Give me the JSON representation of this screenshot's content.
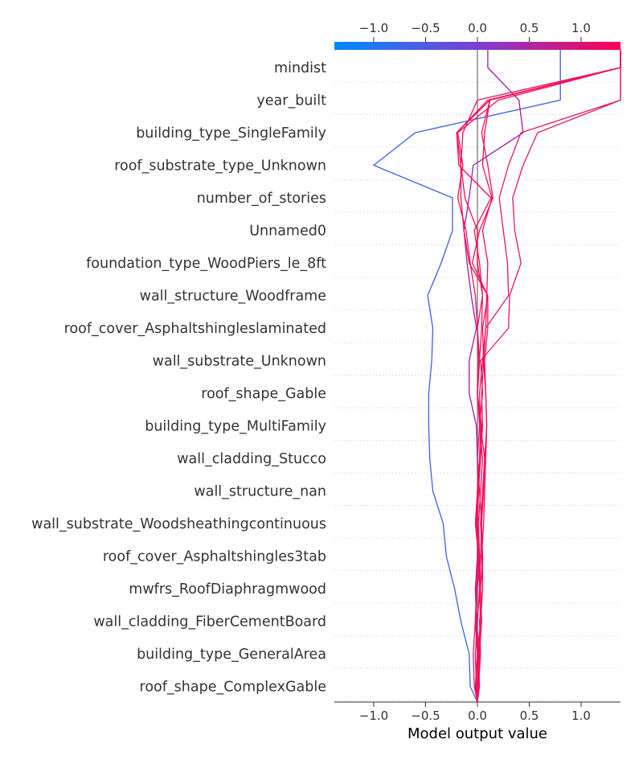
{
  "chart_data": {
    "type": "line",
    "title": "",
    "xlabel": "Model output value",
    "xlim": [
      -1.38,
      1.38
    ],
    "xticks": [
      -1.0,
      -0.5,
      0.0,
      0.5,
      1.0
    ],
    "xtick_labels": [
      "−1.0",
      "−0.5",
      "0.0",
      "0.5",
      "1.0"
    ],
    "base_value": 0.0,
    "colorbar": {
      "from": "#008bfb",
      "mid": "#7d3fd3",
      "to": "#ff0052"
    },
    "features": [
      "mindist",
      "year_built",
      "building_type_SingleFamily",
      "roof_substrate_type_Unknown",
      "number_of_stories",
      "Unnamed0",
      "foundation_type_WoodPiers_le_8ft",
      "wall_structure_Woodframe",
      "roof_cover_Asphaltshingleslaminated",
      "wall_substrate_Unknown",
      "roof_shape_Gable",
      "building_type_MultiFamily",
      "wall_cladding_Stucco",
      "wall_structure_nan",
      "wall_substrate_Woodsheathingcontinuous",
      "roof_cover_Asphaltshingles3tab",
      "mwfrs_RoofDiaphragmwood",
      "wall_cladding_FiberCementBoard",
      "building_type_GeneralArea",
      "roof_shape_ComplexGable"
    ],
    "series": [
      {
        "color": "#3b5fe4",
        "values": [
          -0.07,
          -0.08,
          -0.16,
          -0.22,
          -0.3,
          -0.33,
          -0.43,
          -0.46,
          -0.47,
          -0.47,
          -0.44,
          -0.43,
          -0.48,
          -0.35,
          -0.24,
          -0.24,
          -1.0,
          -0.6,
          0.8
        ]
      },
      {
        "color": "#a01aa6",
        "values": [
          -0.02,
          0.0,
          -0.01,
          -0.02,
          0.0,
          0.0,
          0.01,
          0.0,
          -0.01,
          -0.08,
          -0.08,
          -0.01,
          -0.06,
          -0.1,
          -0.13,
          -0.08,
          -0.04,
          0.44,
          0.4,
          0.1
        ]
      },
      {
        "color": "#e3166e",
        "values": [
          0.0,
          0.02,
          -0.01,
          0.03,
          0.05,
          0.04,
          0.02,
          0.0,
          0.02,
          0.05,
          0.03,
          0.3,
          0.31,
          0.42,
          0.36,
          0.34,
          0.44,
          0.58,
          1.38
        ]
      },
      {
        "color": "#ea1560",
        "values": [
          0.01,
          0.0,
          0.03,
          0.02,
          0.03,
          0.04,
          0.06,
          0.07,
          0.03,
          0.02,
          0.05,
          0.08,
          0.3,
          0.29,
          0.25,
          0.21,
          0.3,
          0.42,
          1.38
        ]
      },
      {
        "color": "#f00d58",
        "values": [
          -0.01,
          -0.02,
          0.0,
          0.02,
          0.01,
          -0.02,
          0.0,
          0.03,
          0.05,
          0.04,
          0.06,
          0.08,
          0.09,
          0.1,
          0.05,
          0.14,
          0.05,
          0.07,
          0.12,
          1.38
        ]
      },
      {
        "color": "#f80c54",
        "values": [
          0.02,
          0.01,
          0.03,
          0.05,
          0.04,
          0.06,
          0.07,
          0.08,
          0.09,
          0.08,
          0.07,
          0.1,
          0.1,
          -0.05,
          0.02,
          0.15,
          0.1,
          0.04,
          0.12,
          1.38
        ]
      },
      {
        "color": "#ff0a52",
        "values": [
          0.0,
          0.02,
          0.04,
          0.03,
          0.02,
          0.0,
          0.01,
          0.03,
          0.04,
          0.0,
          0.02,
          0.04,
          0.05,
          0.02,
          -0.03,
          0.13,
          -0.18,
          -0.2,
          0.12,
          1.38
        ]
      },
      {
        "color": "#fa0d56",
        "values": [
          -0.01,
          0.0,
          -0.02,
          -0.01,
          0.01,
          -0.01,
          0.0,
          0.02,
          0.03,
          0.0,
          0.01,
          0.0,
          -0.02,
          -0.07,
          -0.11,
          -0.19,
          -0.14,
          -0.19,
          0.2,
          1.38
        ]
      },
      {
        "color": "#f40e5a",
        "values": [
          0.01,
          0.03,
          0.02,
          0.05,
          0.05,
          0.03,
          0.05,
          0.07,
          0.09,
          0.08,
          0.06,
          0.05,
          0.1,
          -0.08,
          -0.13,
          -0.16,
          -0.16,
          -0.14,
          0.0,
          1.38
        ]
      },
      {
        "color": "#f01060",
        "values": [
          -0.03,
          -0.04,
          -0.02,
          0.0,
          0.02,
          0.01,
          0.03,
          0.05,
          0.02,
          0.0,
          0.02,
          0.0,
          0.05,
          0.0,
          0.0,
          -0.12,
          -0.16,
          -0.2,
          0.1,
          1.38
        ]
      }
    ]
  }
}
